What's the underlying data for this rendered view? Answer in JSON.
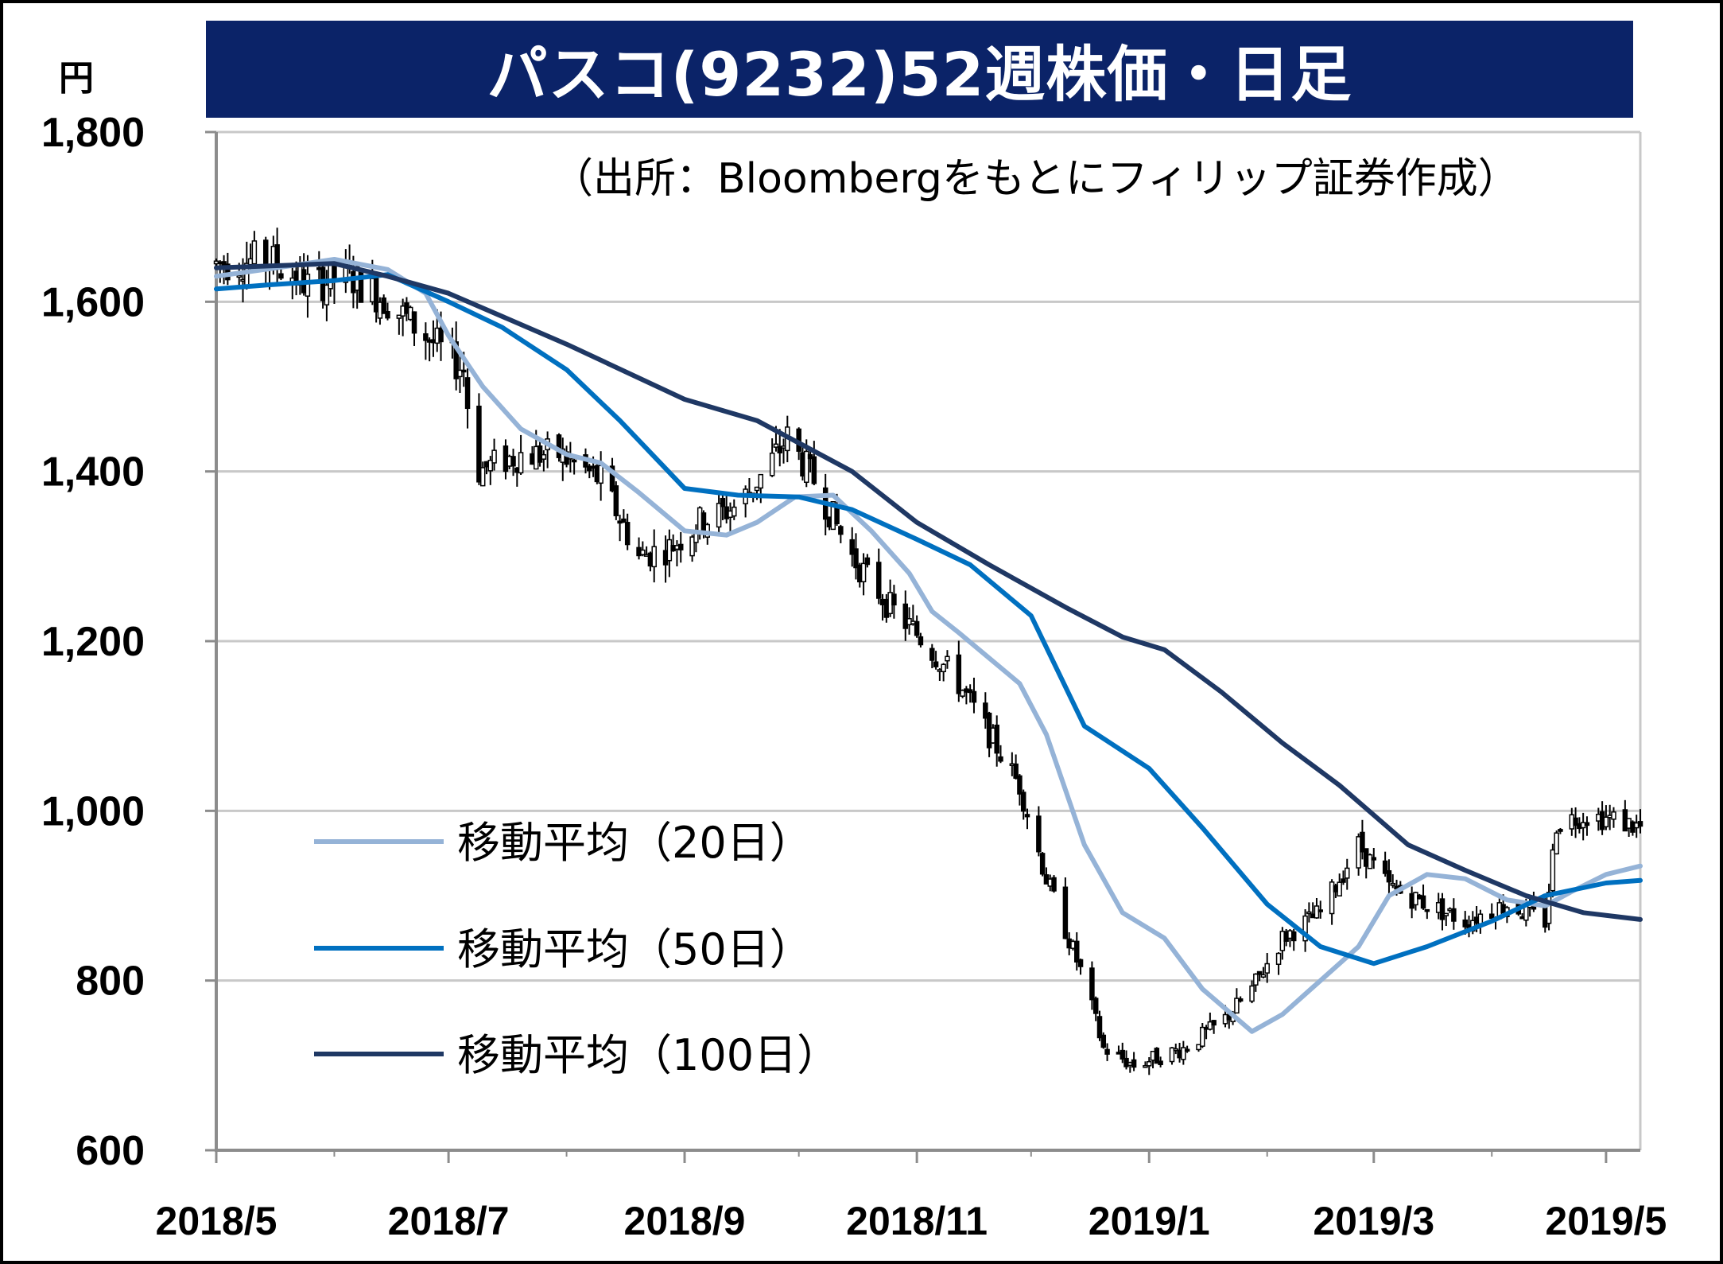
{
  "chart_data": {
    "type": "line",
    "title": "パスコ(9232)52週株価・日足",
    "source": "（出所：Bloombergをもとにフィリップ証券作成）",
    "ylabel": "円",
    "xlabel": "",
    "ylim": [
      600,
      1800
    ],
    "yticks": [
      "1,800",
      "1,600",
      "1,400",
      "1,200",
      "1,000",
      "800",
      "600"
    ],
    "ytick_values": [
      1800,
      1600,
      1400,
      1200,
      1000,
      800,
      600
    ],
    "xlim": [
      "2018-05-01",
      "2019-05-10"
    ],
    "x_tick_labels": [
      "2018/5",
      "2018/7",
      "2018/9",
      "2018/11",
      "2019/1",
      "2019/3",
      "2019/5"
    ],
    "x_tick_dates": [
      "2018-05-01",
      "2018-07-01",
      "2018-09-01",
      "2018-11-01",
      "2019-01-01",
      "2019-03-01",
      "2019-05-01"
    ],
    "grid": true,
    "legend_position": "bottom-left",
    "price_series": {
      "kind": "candlestick",
      "color": "#000000",
      "anchors": [
        [
          "2018-05-01",
          1645
        ],
        [
          "2018-05-15",
          1650
        ],
        [
          "2018-05-25",
          1620
        ],
        [
          "2018-06-05",
          1630
        ],
        [
          "2018-06-15",
          1600
        ],
        [
          "2018-06-25",
          1560
        ],
        [
          "2018-07-05",
          1520
        ],
        [
          "2018-07-08",
          1400
        ],
        [
          "2018-07-20",
          1420
        ],
        [
          "2018-07-30",
          1420
        ],
        [
          "2018-08-10",
          1390
        ],
        [
          "2018-08-20",
          1300
        ],
        [
          "2018-08-28",
          1310
        ],
        [
          "2018-09-05",
          1340
        ],
        [
          "2018-09-15",
          1360
        ],
        [
          "2018-09-22",
          1400
        ],
        [
          "2018-09-28",
          1440
        ],
        [
          "2018-10-05",
          1390
        ],
        [
          "2018-10-15",
          1300
        ],
        [
          "2018-10-25",
          1240
        ],
        [
          "2018-11-03",
          1200
        ],
        [
          "2018-11-12",
          1150
        ],
        [
          "2018-11-20",
          1090
        ],
        [
          "2018-11-28",
          1030
        ],
        [
          "2018-12-05",
          920
        ],
        [
          "2018-12-15",
          800
        ],
        [
          "2018-12-20",
          720
        ],
        [
          "2018-12-28",
          700
        ],
        [
          "2019-01-10",
          720
        ],
        [
          "2019-01-20",
          750
        ],
        [
          "2019-01-28",
          790
        ],
        [
          "2019-02-05",
          850
        ],
        [
          "2019-02-15",
          880
        ],
        [
          "2019-02-25",
          960
        ],
        [
          "2019-03-05",
          910
        ],
        [
          "2019-03-15",
          890
        ],
        [
          "2019-03-25",
          870
        ],
        [
          "2019-04-05",
          890
        ],
        [
          "2019-04-15",
          870
        ],
        [
          "2019-04-18",
          985
        ],
        [
          "2019-04-25",
          995
        ],
        [
          "2019-05-03",
          990
        ],
        [
          "2019-05-10",
          980
        ]
      ]
    },
    "series": [
      {
        "name": "移動平均（20日）",
        "color": "#95b3d7",
        "points": [
          [
            "2018-05-01",
            1630
          ],
          [
            "2018-05-20",
            1642
          ],
          [
            "2018-06-01",
            1650
          ],
          [
            "2018-06-15",
            1638
          ],
          [
            "2018-06-25",
            1610
          ],
          [
            "2018-07-01",
            1560
          ],
          [
            "2018-07-10",
            1500
          ],
          [
            "2018-07-20",
            1450
          ],
          [
            "2018-08-01",
            1420
          ],
          [
            "2018-08-10",
            1410
          ],
          [
            "2018-08-20",
            1375
          ],
          [
            "2018-09-01",
            1330
          ],
          [
            "2018-09-12",
            1325
          ],
          [
            "2018-09-20",
            1340
          ],
          [
            "2018-09-30",
            1370
          ],
          [
            "2018-10-10",
            1372
          ],
          [
            "2018-10-20",
            1330
          ],
          [
            "2018-10-30",
            1280
          ],
          [
            "2018-11-05",
            1235
          ],
          [
            "2018-11-12",
            1210
          ],
          [
            "2018-11-20",
            1180
          ],
          [
            "2018-11-28",
            1150
          ],
          [
            "2018-12-05",
            1090
          ],
          [
            "2018-12-15",
            960
          ],
          [
            "2018-12-25",
            880
          ],
          [
            "2019-01-05",
            850
          ],
          [
            "2019-01-15",
            790
          ],
          [
            "2019-01-28",
            740
          ],
          [
            "2019-02-05",
            760
          ],
          [
            "2019-02-15",
            800
          ],
          [
            "2019-02-25",
            840
          ],
          [
            "2019-03-05",
            900
          ],
          [
            "2019-03-15",
            925
          ],
          [
            "2019-03-25",
            920
          ],
          [
            "2019-04-05",
            895
          ],
          [
            "2019-04-15",
            888
          ],
          [
            "2019-04-22",
            905
          ],
          [
            "2019-05-01",
            925
          ],
          [
            "2019-05-10",
            935
          ]
        ]
      },
      {
        "name": "移動平均（50日）",
        "color": "#0070c0",
        "points": [
          [
            "2018-05-01",
            1615
          ],
          [
            "2018-05-15",
            1620
          ],
          [
            "2018-06-01",
            1625
          ],
          [
            "2018-06-15",
            1632
          ],
          [
            "2018-07-01",
            1600
          ],
          [
            "2018-07-15",
            1570
          ],
          [
            "2018-08-01",
            1520
          ],
          [
            "2018-08-15",
            1460
          ],
          [
            "2018-09-01",
            1380
          ],
          [
            "2018-09-15",
            1372
          ],
          [
            "2018-10-01",
            1370
          ],
          [
            "2018-10-15",
            1355
          ],
          [
            "2018-11-01",
            1320
          ],
          [
            "2018-11-15",
            1290
          ],
          [
            "2018-12-01",
            1230
          ],
          [
            "2018-12-15",
            1100
          ],
          [
            "2019-01-01",
            1050
          ],
          [
            "2019-01-15",
            980
          ],
          [
            "2019-02-01",
            890
          ],
          [
            "2019-02-15",
            840
          ],
          [
            "2019-03-01",
            820
          ],
          [
            "2019-03-15",
            840
          ],
          [
            "2019-04-01",
            870
          ],
          [
            "2019-04-15",
            900
          ],
          [
            "2019-05-01",
            915
          ],
          [
            "2019-05-10",
            918
          ]
        ]
      },
      {
        "name": "移動平均（100日）",
        "color": "#1f3864",
        "points": [
          [
            "2018-05-01",
            1640
          ],
          [
            "2018-06-01",
            1645
          ],
          [
            "2018-06-15",
            1630
          ],
          [
            "2018-07-01",
            1610
          ],
          [
            "2018-08-01",
            1550
          ],
          [
            "2018-09-01",
            1485
          ],
          [
            "2018-09-20",
            1460
          ],
          [
            "2018-10-15",
            1400
          ],
          [
            "2018-11-01",
            1340
          ],
          [
            "2018-11-20",
            1290
          ],
          [
            "2018-12-10",
            1240
          ],
          [
            "2018-12-25",
            1205
          ],
          [
            "2019-01-05",
            1190
          ],
          [
            "2019-01-20",
            1140
          ],
          [
            "2019-02-05",
            1080
          ],
          [
            "2019-02-20",
            1030
          ],
          [
            "2019-03-10",
            960
          ],
          [
            "2019-03-25",
            930
          ],
          [
            "2019-04-10",
            900
          ],
          [
            "2019-04-25",
            880
          ],
          [
            "2019-05-10",
            872
          ]
        ]
      }
    ]
  }
}
